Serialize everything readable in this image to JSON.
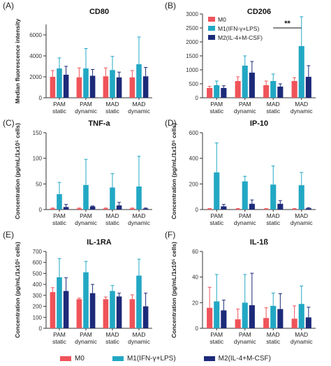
{
  "colors": {
    "M0": "#f0535a",
    "M1": "#22a8c4",
    "M2": "#1c2a7a",
    "axis": "#333333"
  },
  "legend": {
    "m0": "M0",
    "m1": "M1(IFN-γ+LPS)",
    "m2": "M2(IL-4+M-CSF)"
  },
  "chart_data": [
    {
      "panel": "(A)",
      "title": "CD80",
      "type": "bar",
      "ylabel": "Median fluorescence intensity",
      "yticks": [
        "0",
        "2000",
        "4000",
        "6000"
      ],
      "ylim": [
        0,
        7000
      ],
      "categories": [
        [
          "PAM",
          "static"
        ],
        [
          "PAM",
          "dynamic"
        ],
        [
          "MAD",
          "static"
        ],
        [
          "MAD",
          "dynamic"
        ]
      ],
      "series": [
        {
          "name": "M0",
          "values": [
            2000,
            1950,
            2050,
            1950
          ],
          "errors": [
            600,
            900,
            800,
            650
          ]
        },
        {
          "name": "M1(IFN-γ+LPS)",
          "values": [
            2800,
            2800,
            2650,
            3200
          ],
          "errors": [
            1000,
            1900,
            1300,
            2600
          ]
        },
        {
          "name": "M2(IL-4+M-CSF)",
          "values": [
            2200,
            2100,
            1950,
            2050
          ],
          "errors": [
            800,
            600,
            500,
            850
          ]
        }
      ]
    },
    {
      "panel": "(B)",
      "title": "CD206",
      "type": "bar",
      "ylabel": "",
      "yticks": [
        "0",
        "500",
        "1000",
        "1500",
        "2000",
        "2500",
        "3000"
      ],
      "ylim": [
        0,
        3000
      ],
      "categories": [
        [
          "PAM",
          "static"
        ],
        [
          "PAM",
          "dynamic"
        ],
        [
          "MAD",
          "static"
        ],
        [
          "MAD",
          "dynamic"
        ]
      ],
      "series": [
        {
          "name": "M0",
          "values": [
            350,
            600,
            450,
            600
          ],
          "errors": [
            60,
            150,
            150,
            120
          ]
        },
        {
          "name": "M1(IFN-γ+LPS)",
          "values": [
            450,
            1150,
            600,
            1850
          ],
          "errors": [
            150,
            350,
            250,
            1050
          ]
        },
        {
          "name": "M2(IL-4+M-CSF)",
          "values": [
            350,
            900,
            400,
            750
          ],
          "errors": [
            80,
            400,
            100,
            400
          ]
        }
      ],
      "annotation": "**",
      "legend_entries": [
        "M0",
        "M1(IFN-γ+LPS)",
        "M2(IL-4+M-CSF)"
      ]
    },
    {
      "panel": "(C)",
      "title": "TNF-a",
      "type": "bar",
      "ylabel": "Concentration (pg/mL/1x10⁵ cells)",
      "yticks": [
        "0",
        "50",
        "100",
        "150"
      ],
      "ylim": [
        0,
        150
      ],
      "categories": [
        [
          "PAM",
          "static"
        ],
        [
          "PAM",
          "dynamic"
        ],
        [
          "MAD",
          "static"
        ],
        [
          "MAD",
          "dynamic"
        ]
      ],
      "series": [
        {
          "name": "M0",
          "values": [
            2,
            2,
            2,
            2
          ],
          "errors": [
            1,
            1,
            1,
            1
          ]
        },
        {
          "name": "M1(IFN-γ+LPS)",
          "values": [
            30,
            48,
            43,
            45
          ],
          "errors": [
            23,
            50,
            27,
            59
          ]
        },
        {
          "name": "M2(IL-4+M-CSF)",
          "values": [
            5,
            6,
            8,
            2
          ],
          "errors": [
            5,
            1,
            6,
            1
          ]
        }
      ]
    },
    {
      "panel": "(D)",
      "title": "IP-10",
      "type": "bar",
      "ylabel": "Concentration (pg/mL/1x10⁵ cells)",
      "yticks": [
        "0",
        "200",
        "400",
        "600"
      ],
      "ylim": [
        0,
        600
      ],
      "categories": [
        [
          "PAM",
          "static"
        ],
        [
          "PAM",
          "dynamic"
        ],
        [
          "MAD",
          "static"
        ],
        [
          "MAD",
          "dynamic"
        ]
      ],
      "series": [
        {
          "name": "M0",
          "values": [
            5,
            5,
            5,
            5
          ],
          "errors": [
            3,
            3,
            3,
            3
          ]
        },
        {
          "name": "M1(IFN-γ+LPS)",
          "values": [
            290,
            220,
            195,
            190
          ],
          "errors": [
            230,
            40,
            145,
            100
          ]
        },
        {
          "name": "M2(IL-4+M-CSF)",
          "values": [
            25,
            45,
            45,
            10
          ],
          "errors": [
            15,
            30,
            25,
            5
          ]
        }
      ]
    },
    {
      "panel": "(E)",
      "title": "IL-1RA",
      "type": "bar",
      "ylabel": "Concentration (pg/mL/1x10⁵ cells)",
      "yticks": [
        "0",
        "100",
        "200",
        "300",
        "400",
        "500",
        "600",
        "700"
      ],
      "ylim": [
        0,
        700
      ],
      "categories": [
        [
          "PAM",
          "static"
        ],
        [
          "PAM",
          "dynamic"
        ],
        [
          "MAD",
          "static"
        ],
        [
          "MAD",
          "dynamic"
        ]
      ],
      "series": [
        {
          "name": "M0",
          "values": [
            330,
            265,
            265,
            265
          ],
          "errors": [
            40,
            10,
            20,
            40
          ]
        },
        {
          "name": "M1(IFN-γ+LPS)",
          "values": [
            465,
            510,
            340,
            480
          ],
          "errors": [
            170,
            100,
            50,
            150
          ]
        },
        {
          "name": "M2(IL-4+M-CSF)",
          "values": [
            340,
            320,
            290,
            200
          ],
          "errors": [
            120,
            80,
            30,
            120
          ]
        }
      ]
    },
    {
      "panel": "(F)",
      "title": "IL-1ß",
      "type": "bar",
      "ylabel": "Concentration (pg/mL/1x10⁵ cells)",
      "yticks": [
        "0",
        "20",
        "40",
        "60"
      ],
      "ylim": [
        0,
        60
      ],
      "categories": [
        [
          "PAM",
          "static"
        ],
        [
          "PAM",
          "dynamic"
        ],
        [
          "MAD",
          "static"
        ],
        [
          "MAD",
          "dynamic"
        ]
      ],
      "series": [
        {
          "name": "M0",
          "values": [
            16,
            7,
            8,
            7.5
          ],
          "errors": [
            16,
            8,
            8,
            10
          ]
        },
        {
          "name": "M1(IFN-γ+LPS)",
          "values": [
            21,
            20,
            17.5,
            19
          ],
          "errors": [
            21,
            22,
            10,
            14
          ]
        },
        {
          "name": "M2(IL-4+M-CSF)",
          "values": [
            14,
            18,
            15,
            8.5
          ],
          "errors": [
            8,
            25,
            12,
            8
          ]
        }
      ]
    }
  ]
}
